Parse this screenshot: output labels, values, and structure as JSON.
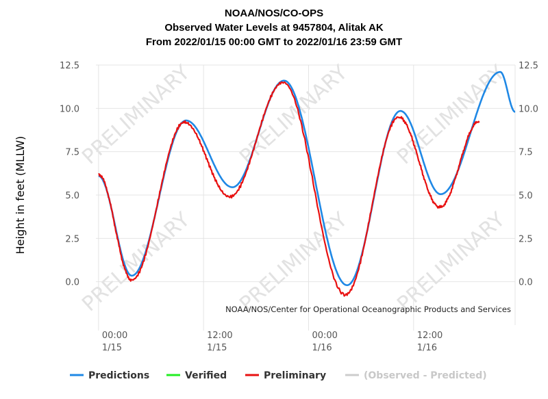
{
  "chart_data": {
    "type": "line",
    "title": "NOAA/NOS/CO-OPS",
    "subtitle_station": "Observed Water Levels at 9457804, Alitak AK",
    "subtitle_range": "From 2022/01/15 00:00 GMT to 2022/01/16 23:59 GMT",
    "ylabel": "Height in feet (MLLW)",
    "ylim": [
      -2.5,
      12.5
    ],
    "yticks": [
      "12.5",
      "10.0",
      "7.5",
      "5.0",
      "2.5",
      "0.0"
    ],
    "ytick_values": [
      12.5,
      10.0,
      7.5,
      5.0,
      2.5,
      0.0
    ],
    "xlim_hours": [
      -0.3,
      47.6
    ],
    "xticks": [
      {
        "hour": 0,
        "time": "00:00",
        "date": "1/15"
      },
      {
        "hour": 12,
        "time": "12:00",
        "date": "1/15"
      },
      {
        "hour": 24,
        "time": "00:00",
        "date": "1/16"
      },
      {
        "hour": 36,
        "time": "12:00",
        "date": "1/16"
      }
    ],
    "credit": "NOAA/NOS/Center for Operational Oceanographic Products and Services",
    "watermark": "PRELIMINARY",
    "legend": [
      {
        "name": "Predictions",
        "color": "#1f88e5"
      },
      {
        "name": "Verified",
        "color": "#22ee22"
      },
      {
        "name": "Preliminary",
        "color": "#e81010"
      },
      {
        "name": "(Observed - Predicted)",
        "color": "#cccccc"
      }
    ],
    "series": [
      {
        "name": "Predictions",
        "color": "#1f88e5",
        "x": [
          0,
          3.8,
          10,
          15.3,
          21.2,
          28.4,
          34.5,
          39.1,
          45.9,
          47.6
        ],
        "y": [
          6.1,
          0.35,
          9.3,
          5.45,
          11.6,
          -0.2,
          9.85,
          5.05,
          12.1,
          9.8
        ]
      },
      {
        "name": "Preliminary",
        "color": "#e81010",
        "x": [
          0,
          3.8,
          9.8,
          15.0,
          21.1,
          28.2,
          34.3,
          39.0,
          43.5
        ],
        "y": [
          6.2,
          0.1,
          9.2,
          4.9,
          11.5,
          -0.75,
          9.5,
          4.3,
          9.25
        ]
      },
      {
        "name": "Verified",
        "color": "#22ee22",
        "x": [],
        "y": []
      }
    ]
  }
}
